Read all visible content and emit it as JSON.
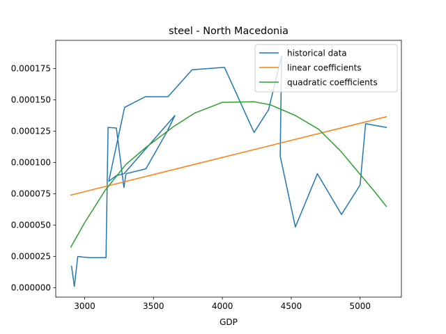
{
  "chart_data": {
    "type": "line",
    "title": "steel - North Macedonia",
    "xlabel": "GDP",
    "ylabel": "",
    "xlim": [
      2790,
      5300
    ],
    "ylim": [
      -7.5e-06,
      0.0001975
    ],
    "xticks": [
      3000,
      3500,
      4000,
      4500,
      5000
    ],
    "xtick_labels": [
      "3000",
      "3500",
      "4000",
      "4500",
      "5000"
    ],
    "yticks": [
      0,
      2.5e-05,
      5e-05,
      7.5e-05,
      0.0001,
      0.000125,
      0.00015,
      0.000175
    ],
    "ytick_labels": [
      "0.000000",
      "0.000025",
      "0.000050",
      "0.000075",
      "0.000100",
      "0.000125",
      "0.000150",
      "0.000175"
    ],
    "legend": {
      "position": "top-right"
    },
    "series": [
      {
        "name": "historical data",
        "color": "#1f77b4",
        "x": [
          2905,
          2925,
          2950,
          2985,
          3035,
          3155,
          3170,
          3230,
          3285,
          3300,
          3445,
          3600,
          3655,
          3285,
          3230,
          3175,
          3290,
          3440,
          3605,
          3780,
          4015,
          4230,
          4335,
          4430,
          4420,
          4530,
          4690,
          4865,
          5000,
          5040,
          5190
        ],
        "y": [
          1.7e-05,
          1e-06,
          2.5e-05,
          2.45e-05,
          2.4e-05,
          2.4e-05,
          0.000128,
          0.0001275,
          8e-05,
          9.1e-05,
          9.5e-05,
          0.000125,
          0.0001375,
          9.1e-05,
          8.95e-05,
          8.5e-05,
          0.000144,
          0.0001525,
          0.0001525,
          0.000174,
          0.000176,
          0.000124,
          0.000142,
          0.000185,
          0.000105,
          4.85e-05,
          9.1e-05,
          5.85e-05,
          8.2e-05,
          0.000131,
          0.000128
        ]
      },
      {
        "name": "linear coefficients",
        "color": "#ff7f0e",
        "x": [
          2900,
          5190
        ],
        "y": [
          7.4e-05,
          0.0001365
        ]
      },
      {
        "name": "quadratic coefficients",
        "color": "#2ca02c",
        "x": [
          2900,
          3000,
          3150,
          3300,
          3450,
          3650,
          3800,
          4000,
          4230,
          4350,
          4530,
          4700,
          4860,
          5000,
          5100,
          5190
        ],
        "y": [
          3.25e-05,
          5.2e-05,
          7.8e-05,
          9.85e-05,
          0.0001125,
          0.000129,
          0.0001395,
          0.000148,
          0.0001485,
          0.000146,
          0.0001375,
          0.0001265,
          0.000109,
          9.05e-05,
          7.75e-05,
          6.5e-05
        ]
      }
    ]
  }
}
